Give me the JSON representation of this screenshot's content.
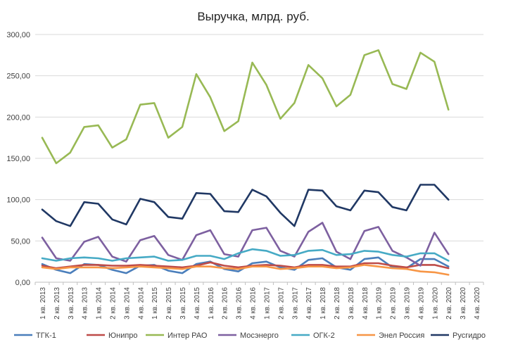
{
  "chart_data": {
    "type": "line",
    "title": "Выручка, млрд. руб.",
    "xlabel": "",
    "ylabel": "",
    "ylim": [
      0,
      300
    ],
    "y_ticks": [
      "0,00",
      "50,00",
      "100,00",
      "150,00",
      "200,00",
      "250,00",
      "300,00"
    ],
    "grid": "horizontal",
    "legend_position": "bottom",
    "categories": [
      "1 кв. 2013",
      "2 кв. 2013",
      "3 кв. 2013",
      "4 кв. 2013",
      "1 кв. 2014",
      "2 кв. 2014",
      "3 кв. 2014",
      "4 кв. 2014",
      "1 кв. 2015",
      "2 кв. 2015",
      "3 кв. 2015",
      "4 кв. 2015",
      "1 кв. 2016",
      "2 кв. 2016",
      "3 кв. 2016",
      "4 кв. 2016",
      "1 кв. 2017",
      "2 кв. 2017",
      "3 кв. 2017",
      "4 кв. 2017",
      "1 кв. 2018",
      "2 кв. 2018",
      "3 кв. 2018",
      "4 кв. 2018",
      "1 кв. 2019",
      "2 кв. 2019",
      "3 кв. 2019",
      "4 кв. 2019",
      "1 кв. 2020",
      "2 кв. 2020",
      "3 кв. 2020",
      "4 кв. 2020"
    ],
    "series": [
      {
        "name": "ТГК-1",
        "color": "#4a7ebb",
        "values": [
          22,
          15,
          11,
          22,
          21,
          15,
          11,
          20,
          21,
          14,
          11,
          22,
          25,
          16,
          13,
          23,
          25,
          18,
          15,
          27,
          29,
          18,
          15,
          28,
          30,
          18,
          17,
          28,
          28,
          19,
          null,
          null
        ]
      },
      {
        "name": "Юнипро",
        "color": "#be4b48",
        "values": [
          20,
          17,
          19,
          21,
          21,
          20,
          20,
          21,
          20,
          19,
          18,
          20,
          24,
          20,
          18,
          20,
          21,
          20,
          18,
          21,
          21,
          19,
          19,
          23,
          23,
          20,
          18,
          21,
          21,
          17,
          null,
          null
        ]
      },
      {
        "name": "Интер РАО",
        "color": "#98b954",
        "values": [
          175,
          144,
          157,
          188,
          190,
          163,
          173,
          215,
          217,
          175,
          188,
          252,
          224,
          183,
          195,
          266,
          239,
          198,
          217,
          263,
          247,
          213,
          227,
          275,
          281,
          240,
          234,
          278,
          267,
          209,
          null,
          null
        ]
      },
      {
        "name": "Мосэнерго",
        "color": "#7d60a0",
        "values": [
          54,
          29,
          26,
          49,
          55,
          31,
          25,
          51,
          56,
          33,
          27,
          57,
          63,
          34,
          31,
          63,
          66,
          38,
          31,
          61,
          72,
          37,
          28,
          62,
          67,
          38,
          30,
          20,
          60,
          34,
          null,
          null
        ]
      },
      {
        "name": "ОГК-2",
        "color": "#46aac5",
        "values": [
          29,
          26,
          29,
          30,
          29,
          26,
          29,
          30,
          31,
          26,
          27,
          32,
          32,
          28,
          35,
          40,
          38,
          32,
          33,
          38,
          39,
          33,
          34,
          38,
          37,
          33,
          31,
          35,
          35,
          26,
          null,
          null
        ]
      },
      {
        "name": "Энел Россия",
        "color": "#f79646",
        "values": [
          18,
          16,
          18,
          18,
          18,
          17,
          18,
          19,
          18,
          17,
          16,
          19,
          19,
          17,
          16,
          19,
          19,
          16,
          17,
          19,
          19,
          17,
          18,
          21,
          19,
          17,
          16,
          13,
          12,
          9,
          null,
          null
        ]
      },
      {
        "name": "Русгидро",
        "color": "#203864",
        "values": [
          88,
          74,
          68,
          97,
          95,
          76,
          70,
          101,
          97,
          79,
          77,
          108,
          107,
          86,
          85,
          112,
          104,
          84,
          68,
          112,
          111,
          92,
          87,
          111,
          109,
          91,
          87,
          118,
          118,
          100,
          null,
          null
        ]
      }
    ]
  }
}
